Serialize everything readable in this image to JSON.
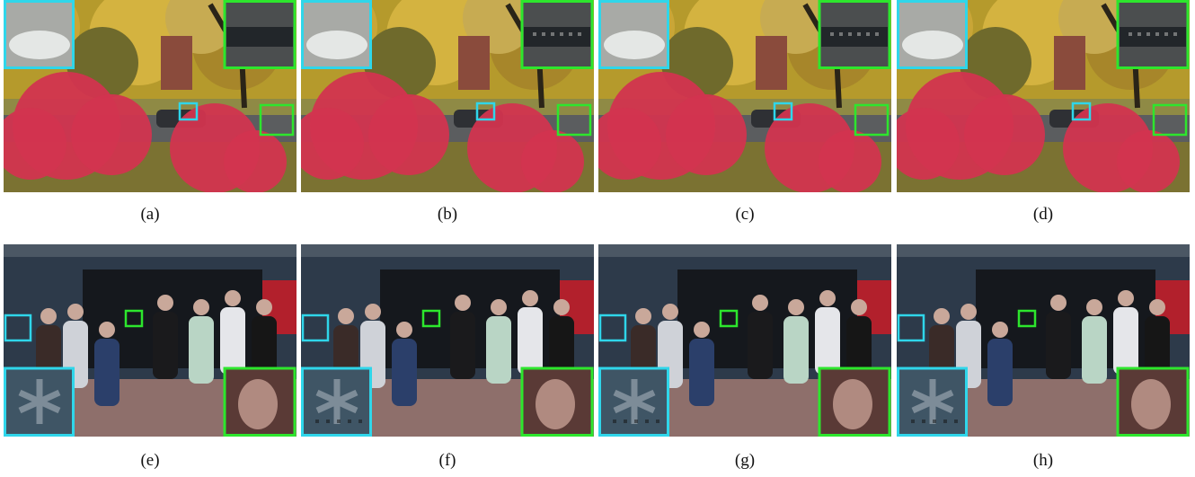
{
  "figure": {
    "panels": [
      {
        "caption": "(a)"
      },
      {
        "caption": "(b)"
      },
      {
        "caption": "(c)"
      },
      {
        "caption": "(d)"
      },
      {
        "caption": "(e)"
      },
      {
        "caption": "(f)"
      },
      {
        "caption": "(g)"
      },
      {
        "caption": "(h)"
      }
    ]
  }
}
